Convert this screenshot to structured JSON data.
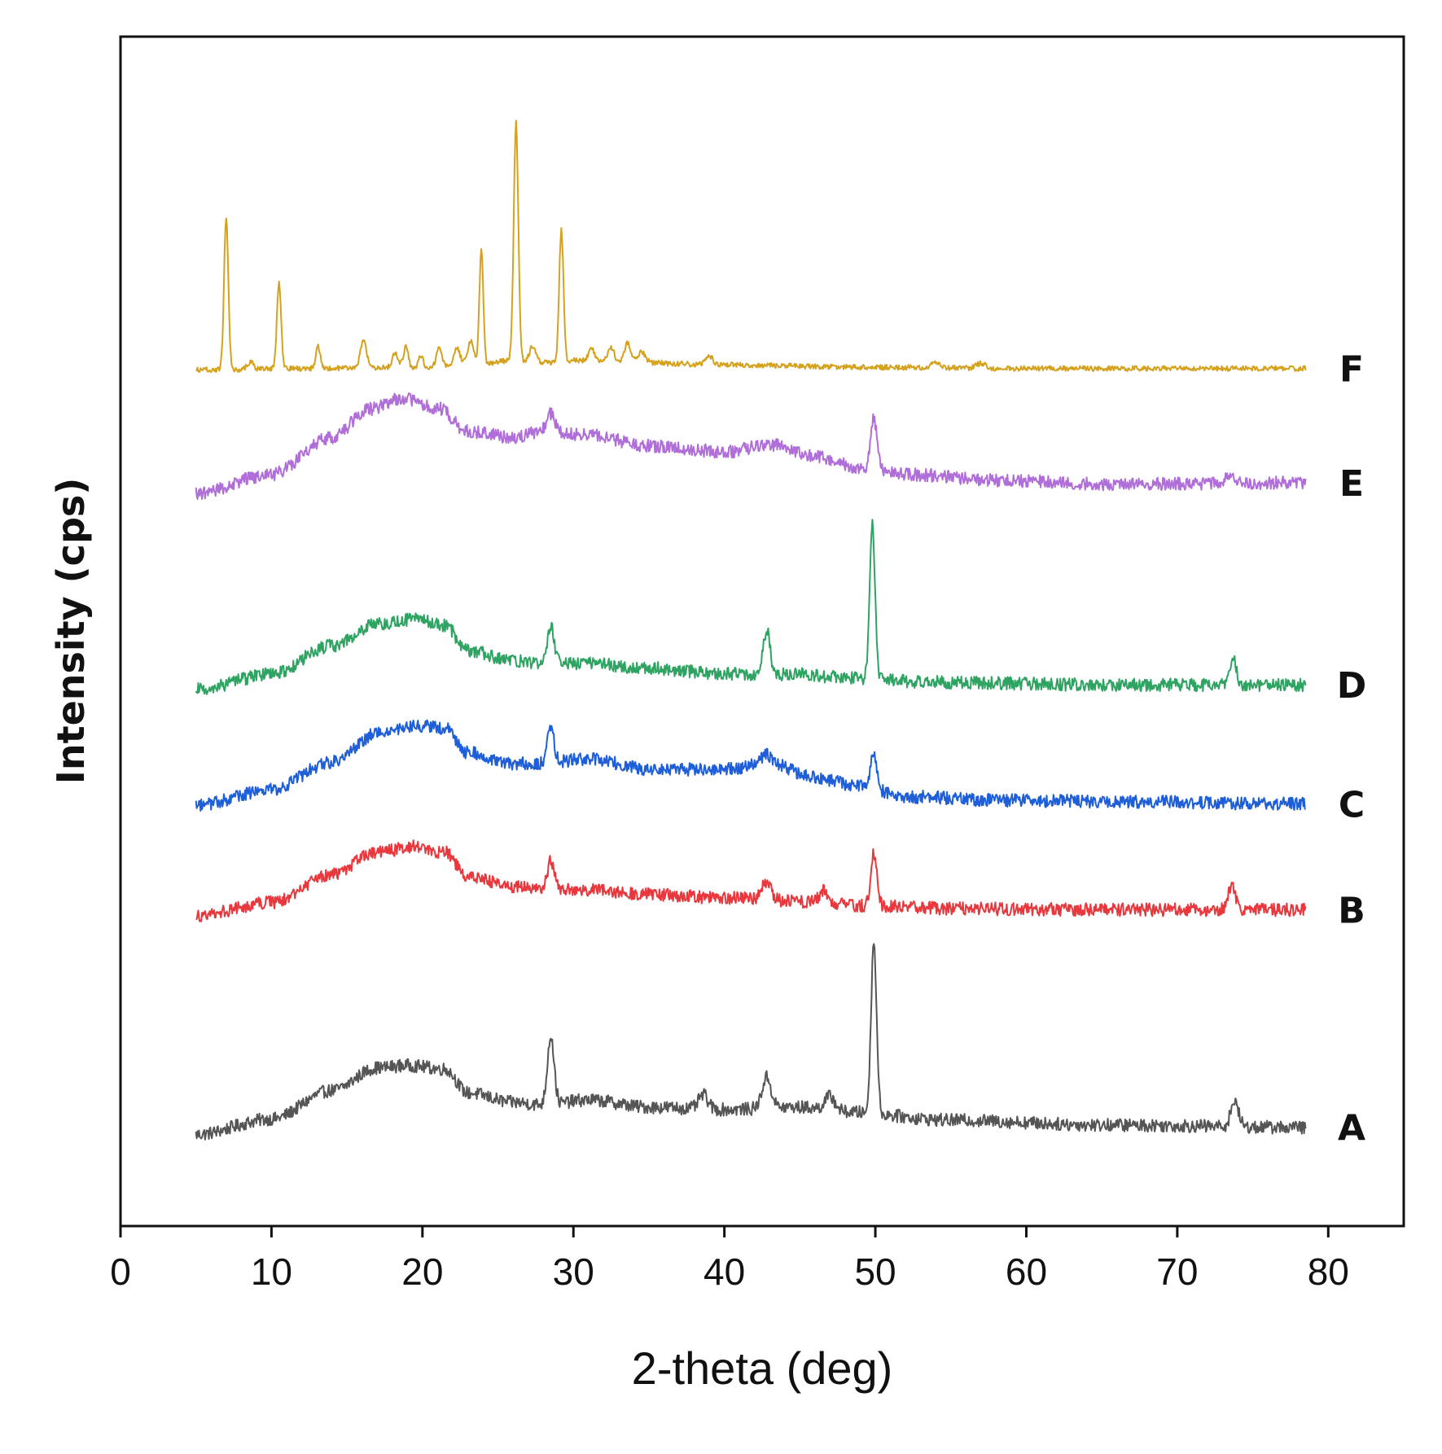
{
  "chart_data": {
    "type": "line",
    "title": "",
    "xlabel": "2-theta (deg)",
    "ylabel": "Intensity (cps)",
    "xlim": [
      0,
      85
    ],
    "x_range": [
      5,
      78.5
    ],
    "xticks": [
      0,
      10,
      20,
      30,
      40,
      50,
      60,
      70,
      80
    ],
    "xtick_labels": [
      "0",
      "10",
      "20",
      "30",
      "40",
      "50",
      "60",
      "70",
      "80"
    ],
    "ylim": [
      0,
      100
    ],
    "y_ticks_shown": false,
    "grid": false,
    "series": [
      {
        "name": "A",
        "label": "A",
        "color": "#555555",
        "points": [
          [
            5,
            7.7
          ],
          [
            10,
            9.0
          ],
          [
            14,
            11.4
          ],
          [
            17,
            13.3
          ],
          [
            19,
            13.5
          ],
          [
            21.5,
            13.2
          ],
          [
            23,
            11.2
          ],
          [
            26,
            10.4
          ],
          [
            28,
            10.2
          ],
          [
            31,
            10.6
          ],
          [
            35,
            10.0
          ],
          [
            40,
            9.8
          ],
          [
            45,
            10.0
          ],
          [
            48,
            9.6
          ],
          [
            55,
            8.9
          ],
          [
            65,
            8.5
          ],
          [
            78.5,
            8.3
          ]
        ],
        "peaks": [
          [
            28.5,
            5.8,
            0.22
          ],
          [
            38.6,
            1.2,
            0.3
          ],
          [
            42.8,
            2.6,
            0.3
          ],
          [
            47.0,
            1.2,
            0.35
          ],
          [
            49.9,
            14.5,
            0.18
          ],
          [
            73.8,
            2.2,
            0.25
          ]
        ]
      },
      {
        "name": "B",
        "label": "B",
        "color": "#e8383d",
        "points": [
          [
            5,
            26.1
          ],
          [
            10,
            27.2
          ],
          [
            14,
            29.6
          ],
          [
            17,
            31.4
          ],
          [
            19.5,
            31.9
          ],
          [
            21.5,
            31.4
          ],
          [
            23,
            29.4
          ],
          [
            26,
            28.5
          ],
          [
            28,
            28.3
          ],
          [
            31,
            28.3
          ],
          [
            35,
            27.9
          ],
          [
            40,
            27.6
          ],
          [
            45,
            27.3
          ],
          [
            50,
            26.9
          ],
          [
            55,
            26.7
          ],
          [
            65,
            26.6
          ],
          [
            78.5,
            26.6
          ]
        ],
        "peaks": [
          [
            28.5,
            2.4,
            0.22
          ],
          [
            42.8,
            1.6,
            0.3
          ],
          [
            46.6,
            1.0,
            0.3
          ],
          [
            49.9,
            4.5,
            0.2
          ],
          [
            73.6,
            1.9,
            0.25
          ]
        ]
      },
      {
        "name": "C",
        "label": "C",
        "color": "#1e5fd9",
        "points": [
          [
            5,
            35.4
          ],
          [
            10,
            36.7
          ],
          [
            14,
            39.0
          ],
          [
            17,
            41.4
          ],
          [
            19.5,
            42.1
          ],
          [
            21.5,
            41.9
          ],
          [
            23,
            39.8
          ],
          [
            26,
            38.9
          ],
          [
            28,
            38.9
          ],
          [
            31,
            39.3
          ],
          [
            35,
            38.4
          ],
          [
            40,
            38.4
          ],
          [
            43,
            38.9
          ],
          [
            46,
            37.7
          ],
          [
            49,
            37.0
          ],
          [
            52,
            36.1
          ],
          [
            58,
            35.8
          ],
          [
            65,
            35.7
          ],
          [
            78.5,
            35.5
          ]
        ],
        "peaks": [
          [
            28.5,
            3.1,
            0.22
          ],
          [
            42.8,
            0.8,
            0.3
          ],
          [
            49.9,
            3.0,
            0.2
          ]
        ]
      },
      {
        "name": "D",
        "label": "D",
        "color": "#2fa362",
        "points": [
          [
            5,
            45.1
          ],
          [
            10,
            46.4
          ],
          [
            14,
            48.8
          ],
          [
            17,
            50.6
          ],
          [
            19.5,
            51.0
          ],
          [
            21.5,
            50.5
          ],
          [
            23,
            48.4
          ],
          [
            26,
            47.5
          ],
          [
            28,
            47.3
          ],
          [
            31,
            47.3
          ],
          [
            35,
            46.9
          ],
          [
            40,
            46.4
          ],
          [
            45,
            46.4
          ],
          [
            48,
            46.1
          ],
          [
            50,
            45.9
          ],
          [
            55,
            45.7
          ],
          [
            65,
            45.5
          ],
          [
            78.5,
            45.5
          ]
        ],
        "peaks": [
          [
            28.5,
            3.2,
            0.22
          ],
          [
            42.8,
            3.7,
            0.22
          ],
          [
            49.8,
            13.0,
            0.18
          ],
          [
            73.7,
            2.4,
            0.22
          ]
        ]
      },
      {
        "name": "E",
        "label": "E",
        "color": "#b06fd8",
        "points": [
          [
            5,
            61.6
          ],
          [
            10,
            63.2
          ],
          [
            14,
            66.3
          ],
          [
            16.5,
            68.7
          ],
          [
            18.5,
            69.6
          ],
          [
            21,
            68.8
          ],
          [
            23,
            66.8
          ],
          [
            26,
            66.3
          ],
          [
            28,
            66.8
          ],
          [
            31,
            66.5
          ],
          [
            35,
            65.6
          ],
          [
            40,
            65.1
          ],
          [
            43,
            65.7
          ],
          [
            46,
            64.7
          ],
          [
            49,
            63.8
          ],
          [
            52,
            63.2
          ],
          [
            58,
            62.7
          ],
          [
            65,
            62.4
          ],
          [
            78.5,
            62.5
          ]
        ],
        "peaks": [
          [
            28.5,
            1.5,
            0.25
          ],
          [
            49.9,
            4.2,
            0.2
          ],
          [
            73.5,
            0.6,
            0.3
          ]
        ]
      },
      {
        "name": "F",
        "label": "F",
        "color": "#d4a21e",
        "points": [
          [
            5,
            72.0
          ],
          [
            20,
            72.2
          ],
          [
            24,
            72.5
          ],
          [
            26,
            72.8
          ],
          [
            28,
            72.6
          ],
          [
            30,
            72.8
          ],
          [
            34,
            72.6
          ],
          [
            40,
            72.4
          ],
          [
            50,
            72.2
          ],
          [
            60,
            72.1
          ],
          [
            78.5,
            72.1
          ]
        ],
        "peaks": [
          [
            7.0,
            12.8,
            0.14
          ],
          [
            8.6,
            0.6,
            0.2
          ],
          [
            10.5,
            7.2,
            0.14
          ],
          [
            13.1,
            1.8,
            0.15
          ],
          [
            16.1,
            2.4,
            0.2
          ],
          [
            18.2,
            1.2,
            0.2
          ],
          [
            18.9,
            1.8,
            0.15
          ],
          [
            19.9,
            1.0,
            0.15
          ],
          [
            21.1,
            1.6,
            0.18
          ],
          [
            22.3,
            1.4,
            0.2
          ],
          [
            23.2,
            1.9,
            0.2
          ],
          [
            23.9,
            9.6,
            0.13
          ],
          [
            26.2,
            20.0,
            0.15
          ],
          [
            27.3,
            1.3,
            0.2
          ],
          [
            29.2,
            11.0,
            0.14
          ],
          [
            31.2,
            1.0,
            0.2
          ],
          [
            32.5,
            1.2,
            0.2
          ],
          [
            33.6,
            1.7,
            0.2
          ],
          [
            34.5,
            0.9,
            0.25
          ],
          [
            39.0,
            0.7,
            0.25
          ],
          [
            54.0,
            0.5,
            0.3
          ],
          [
            57.0,
            0.4,
            0.3
          ]
        ]
      }
    ]
  }
}
